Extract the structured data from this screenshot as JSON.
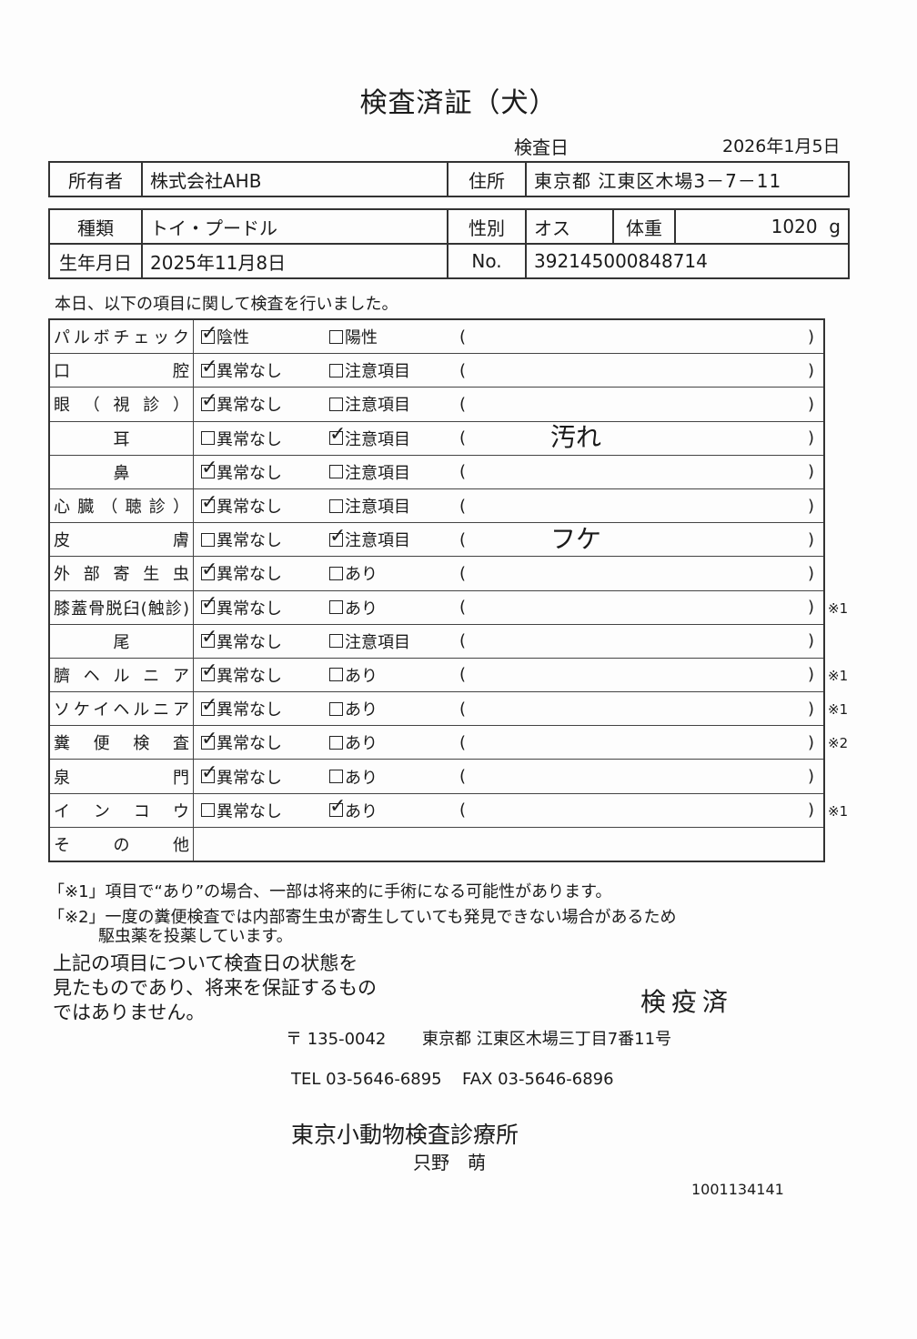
{
  "title": "検査済証（犬）",
  "exam_date_label": "検査日",
  "exam_date": "2026年1月5日",
  "owner": {
    "label": "所有者",
    "value": "株式会社AHB",
    "address_label": "住所",
    "address": "東京都 江東区木場3－7－11"
  },
  "animal": {
    "breed_label": "種類",
    "breed": "トイ・プードル",
    "sex_label": "性別",
    "sex": "オス",
    "weight_label": "体重",
    "weight": "1020",
    "weight_unit": "g",
    "dob_label": "生年月日",
    "dob": "2025年11月8日",
    "no_label": "No.",
    "no": "392145000848714"
  },
  "intro": "本日、以下の項目に関して検査を行いました。",
  "checks": [
    {
      "label": "パルボチェック",
      "opt1": "陰性",
      "opt2": "陽性",
      "checked": 1,
      "note": "",
      "mark": ""
    },
    {
      "label": "口腔",
      "opt1": "異常なし",
      "opt2": "注意項目",
      "checked": 1,
      "note": "",
      "mark": ""
    },
    {
      "label": "眼（視診）",
      "opt1": "異常なし",
      "opt2": "注意項目",
      "checked": 1,
      "note": "",
      "mark": ""
    },
    {
      "label": "耳",
      "opt1": "異常なし",
      "opt2": "注意項目",
      "checked": 2,
      "note": "汚れ",
      "mark": ""
    },
    {
      "label": "鼻",
      "opt1": "異常なし",
      "opt2": "注意項目",
      "checked": 1,
      "note": "",
      "mark": ""
    },
    {
      "label": "心臓（聴診）",
      "opt1": "異常なし",
      "opt2": "注意項目",
      "checked": 1,
      "note": "",
      "mark": ""
    },
    {
      "label": "皮膚",
      "opt1": "異常なし",
      "opt2": "注意項目",
      "checked": 2,
      "note": "フケ",
      "mark": ""
    },
    {
      "label": "外部寄生虫",
      "opt1": "異常なし",
      "opt2": "あり",
      "checked": 1,
      "note": "",
      "mark": ""
    },
    {
      "label": "膝蓋骨脱臼(触診)",
      "opt1": "異常なし",
      "opt2": "あり",
      "checked": 1,
      "note": "",
      "mark": "※1"
    },
    {
      "label": "尾",
      "opt1": "異常なし",
      "opt2": "注意項目",
      "checked": 1,
      "note": "",
      "mark": ""
    },
    {
      "label": "臍ヘルニア",
      "opt1": "異常なし",
      "opt2": "あり",
      "checked": 1,
      "note": "",
      "mark": "※1"
    },
    {
      "label": "ソケイヘルニア",
      "opt1": "異常なし",
      "opt2": "あり",
      "checked": 1,
      "note": "",
      "mark": "※1"
    },
    {
      "label": "糞便検査",
      "opt1": "異常なし",
      "opt2": "あり",
      "checked": 1,
      "note": "",
      "mark": "※2"
    },
    {
      "label": "泉門",
      "opt1": "異常なし",
      "opt2": "あり",
      "checked": 1,
      "note": "",
      "mark": ""
    },
    {
      "label": "インコウ",
      "opt1": "異常なし",
      "opt2": "あり",
      "checked": 2,
      "note": "",
      "mark": "※1"
    },
    {
      "label": "その他",
      "opt1": "",
      "opt2": "",
      "checked": 0,
      "note": "",
      "mark": ""
    }
  ],
  "notes": {
    "n1": "「※1」項目で“あり”の場合、一部は将来的に手術になる可能性があります。",
    "n2a": "「※2」一度の糞便検査では内部寄生虫が寄生していても発見できない場合があるため",
    "n2b": "駆虫薬を投薬しています。"
  },
  "disclaimer": [
    "上記の項目について検査日の状態を",
    "見たものであり、将来を保証するもの",
    "ではありません。"
  ],
  "stamp": "検疫済",
  "clinic": {
    "postal": "〒 135-0042",
    "address": "東京都 江東区木場三丁目7番11号",
    "tel": "TEL 03-5646-6895",
    "fax": "FAX 03-5646-6896",
    "name": "東京小動物検査診療所",
    "person": "只野　萌"
  },
  "doc_number": "1001134141"
}
